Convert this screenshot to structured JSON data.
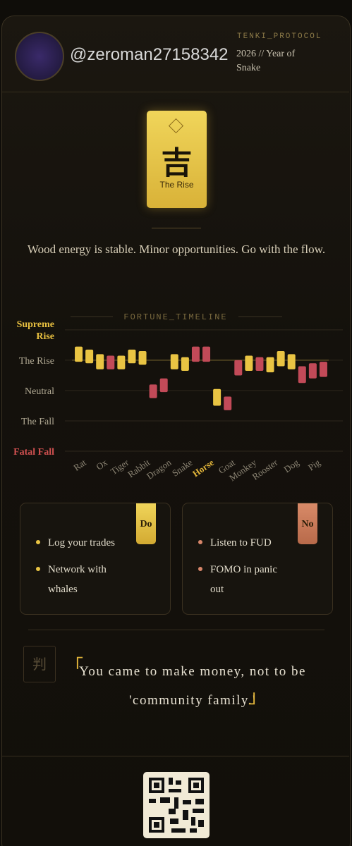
{
  "header": {
    "username": "@zeroman27158342",
    "protocol": "TENKI_PROTOCOL",
    "year_line": "2026 // Year of Snake"
  },
  "fortune_card": {
    "symbol": "吉",
    "label": "The Rise"
  },
  "message": "Wood energy is stable. Minor opportunities. Go with the flow.",
  "chart_data": {
    "type": "candlestick",
    "title": "FORTUNE_TIMELINE",
    "categories": [
      "Rat",
      "Ox",
      "Tiger",
      "Rabbit",
      "Dragon",
      "Snake",
      "Horse",
      "Goat",
      "Monkey",
      "Rooster",
      "Dog",
      "Pig"
    ],
    "highlight_index": 6,
    "ylim": [
      0,
      4.3
    ],
    "yticks": [
      {
        "value": 0,
        "label": "Fatal Fall"
      },
      {
        "value": 1,
        "label": "The Fall"
      },
      {
        "value": 2,
        "label": "Neutral"
      },
      {
        "value": 3,
        "label": "The Rise"
      },
      {
        "value": 4,
        "label": "Supreme Rise"
      }
    ],
    "reference_line": 3,
    "grid": true,
    "candles": [
      {
        "open": 3.45,
        "close": 2.95,
        "color": "#e9c443"
      },
      {
        "open": 3.35,
        "close": 2.9,
        "color": "#e9c443"
      },
      {
        "open": 3.2,
        "close": 2.7,
        "color": "#e9c443"
      },
      {
        "open": 3.15,
        "close": 2.7,
        "color": "#c24a58"
      },
      {
        "open": 3.15,
        "close": 2.7,
        "color": "#e9c443"
      },
      {
        "open": 3.35,
        "close": 2.9,
        "color": "#e9c443"
      },
      {
        "open": 3.3,
        "close": 2.85,
        "color": "#e9c443"
      },
      {
        "open": 2.2,
        "close": 1.75,
        "color": "#c24a58"
      },
      {
        "open": 2.4,
        "close": 1.95,
        "color": "#c24a58"
      },
      {
        "open": 3.2,
        "close": 2.7,
        "color": "#e9c443"
      },
      {
        "open": 3.1,
        "close": 2.65,
        "color": "#e9c443"
      },
      {
        "open": 3.45,
        "close": 2.95,
        "color": "#c24a58"
      },
      {
        "open": 3.45,
        "close": 2.95,
        "color": "#c24a58"
      },
      {
        "open": 2.05,
        "close": 1.5,
        "color": "#e9c443"
      },
      {
        "open": 1.8,
        "close": 1.35,
        "color": "#c24a58"
      },
      {
        "open": 3.0,
        "close": 2.5,
        "color": "#c24a58"
      },
      {
        "open": 3.15,
        "close": 2.65,
        "color": "#e9c443"
      },
      {
        "open": 3.1,
        "close": 2.65,
        "color": "#c24a58"
      },
      {
        "open": 3.1,
        "close": 2.6,
        "color": "#e9c443"
      },
      {
        "open": 3.3,
        "close": 2.8,
        "color": "#e9c443"
      },
      {
        "open": 3.2,
        "close": 2.7,
        "color": "#e9c443"
      },
      {
        "open": 2.8,
        "close": 2.25,
        "color": "#c24a58"
      },
      {
        "open": 2.9,
        "close": 2.4,
        "color": "#c24a58"
      },
      {
        "open": 2.95,
        "close": 2.45,
        "color": "#c24a58"
      }
    ]
  },
  "do": {
    "tag": "Do",
    "items": [
      "Log your trades",
      "Network with whales"
    ]
  },
  "dont": {
    "tag": "No",
    "items": [
      "Listen to FUD",
      "FOMO in panic out"
    ]
  },
  "verdict": {
    "icon": "判",
    "open": "「",
    "quote": "You came to make money, not to be 'community family.'",
    "close": "」"
  }
}
